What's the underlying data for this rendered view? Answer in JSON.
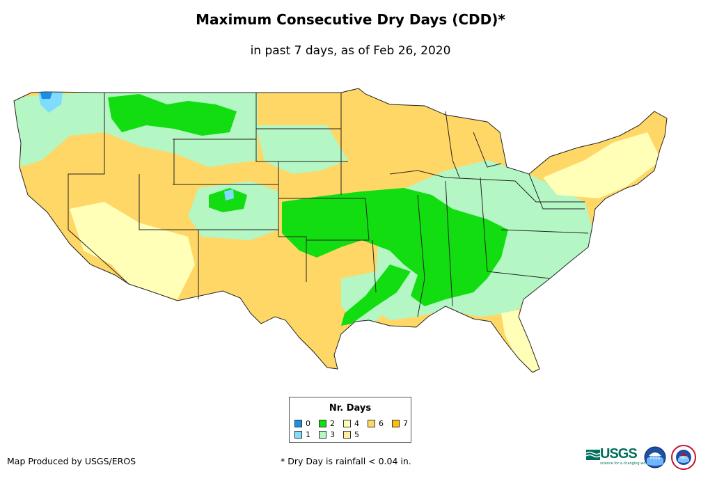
{
  "header": {
    "title": "Maximum Consecutive Dry Days (CDD)*",
    "subtitle": "in past 7 days, as of Feb 26, 2020"
  },
  "legend": {
    "title": "Nr. Days",
    "items": [
      {
        "label": "0",
        "color": "#1a8fe3"
      },
      {
        "label": "1",
        "color": "#7fdcff"
      },
      {
        "label": "2",
        "color": "#11dd11"
      },
      {
        "label": "3",
        "color": "#b4f7c4"
      },
      {
        "label": "4",
        "color": "#ffffb8"
      },
      {
        "label": "5",
        "color": "#fff0a0"
      },
      {
        "label": "6",
        "color": "#ffd766"
      },
      {
        "label": "7",
        "color": "#ffbf00"
      }
    ]
  },
  "footer": {
    "credit": "Map Produced by USGS/EROS",
    "note": "* Dry Day is rainfall < 0.04 in."
  },
  "logos": {
    "usgs": "USGS",
    "usgs_tagline": "science for a changing world",
    "noaa": "noaa",
    "nws": "NWS"
  },
  "map": {
    "subject": "contiguous-united-states",
    "colors": {
      "border": "#222222",
      "dominant": "#ffd766"
    }
  }
}
